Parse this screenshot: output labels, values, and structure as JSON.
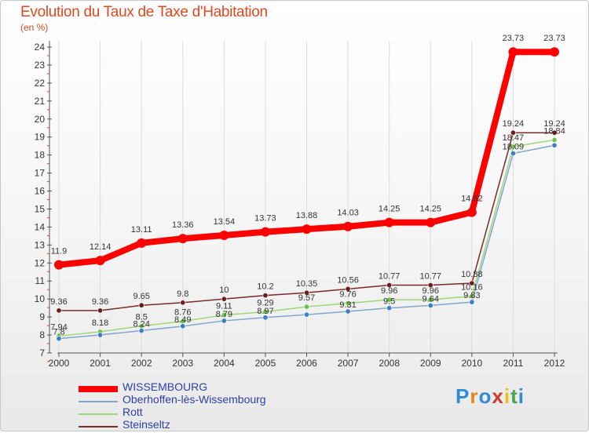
{
  "title": "Evolution du Taux de Taxe d'Habitation",
  "unit_label": "(en %)",
  "logo": {
    "text": "Proxiti",
    "letters": [
      "P",
      "r",
      "o",
      "x",
      "i",
      "t",
      "i"
    ],
    "colors": [
      "#2f8bd6",
      "#e8841c",
      "#2f8bd6",
      "#d33a2c",
      "#e8c21c",
      "#4aa34a",
      "#2f8bd6"
    ]
  },
  "chart_data": {
    "type": "line",
    "title": "Evolution du Taux de Taxe d'Habitation",
    "ylabel": "(en %)",
    "xlabel": "",
    "x": [
      "2000",
      "2001",
      "2002",
      "2003",
      "2004",
      "2005",
      "2006",
      "2007",
      "2008",
      "2009",
      "2010",
      "2011",
      "2012"
    ],
    "ylim": [
      7,
      24
    ],
    "yticks": [
      7,
      8,
      9,
      10,
      11,
      12,
      13,
      14,
      15,
      16,
      17,
      18,
      19,
      20,
      21,
      22,
      23,
      24
    ],
    "series": [
      {
        "name": "WISSEMBOURG",
        "color": "#ff0000",
        "marker": "#ff0000",
        "width": 8,
        "values": [
          11.9,
          12.14,
          13.11,
          13.36,
          13.54,
          13.73,
          13.88,
          14.03,
          14.25,
          14.25,
          14.82,
          23.73,
          23.73
        ],
        "labels": [
          "11.9",
          "12.14",
          "13.11",
          "13.36",
          "13.54",
          "13.73",
          "13.88",
          "14.03",
          "14.25",
          "14.25",
          "14.82",
          "23.73",
          "23.73"
        ]
      },
      {
        "name": "Oberhoffen-lès-Wissembourg",
        "color": "#7fa6cf",
        "marker": "#3d7fc2",
        "width": 1.5,
        "values": [
          7.8,
          8.0,
          8.24,
          8.49,
          8.79,
          8.97,
          9.13,
          9.31,
          9.5,
          9.64,
          9.83,
          18.09,
          18.54
        ],
        "labels": [
          "7.8",
          "",
          "8.24",
          "8.49",
          "8.79",
          "8.97",
          "",
          "9.31",
          "9.5",
          "9.64",
          "9.83",
          "18.09",
          ""
        ]
      },
      {
        "name": "Rott",
        "color": "#9fd67a",
        "marker": "#6cc24a",
        "width": 1.5,
        "values": [
          7.94,
          8.18,
          8.5,
          8.76,
          9.11,
          9.29,
          9.57,
          9.76,
          9.96,
          9.96,
          10.16,
          18.47,
          18.84
        ],
        "labels": [
          "7.94",
          "8.18",
          "8.5",
          "8.76",
          "9.11",
          "9.29",
          "9.57",
          "9.76",
          "9.96",
          "9.96",
          "10.16",
          "18.47",
          "18.84"
        ]
      },
      {
        "name": "Steinseltz",
        "color": "#7a2a2a",
        "marker": "#6a1f1f",
        "width": 1.5,
        "values": [
          9.36,
          9.36,
          9.65,
          9.8,
          10.0,
          10.2,
          10.35,
          10.56,
          10.77,
          10.77,
          10.88,
          19.24,
          19.24
        ],
        "labels": [
          "9.36",
          "9.36",
          "9.65",
          "9.8",
          "10",
          "10.2",
          "10.35",
          "10.56",
          "10.77",
          "10.77",
          "10.88",
          "19.24",
          "19.24"
        ]
      }
    ]
  }
}
